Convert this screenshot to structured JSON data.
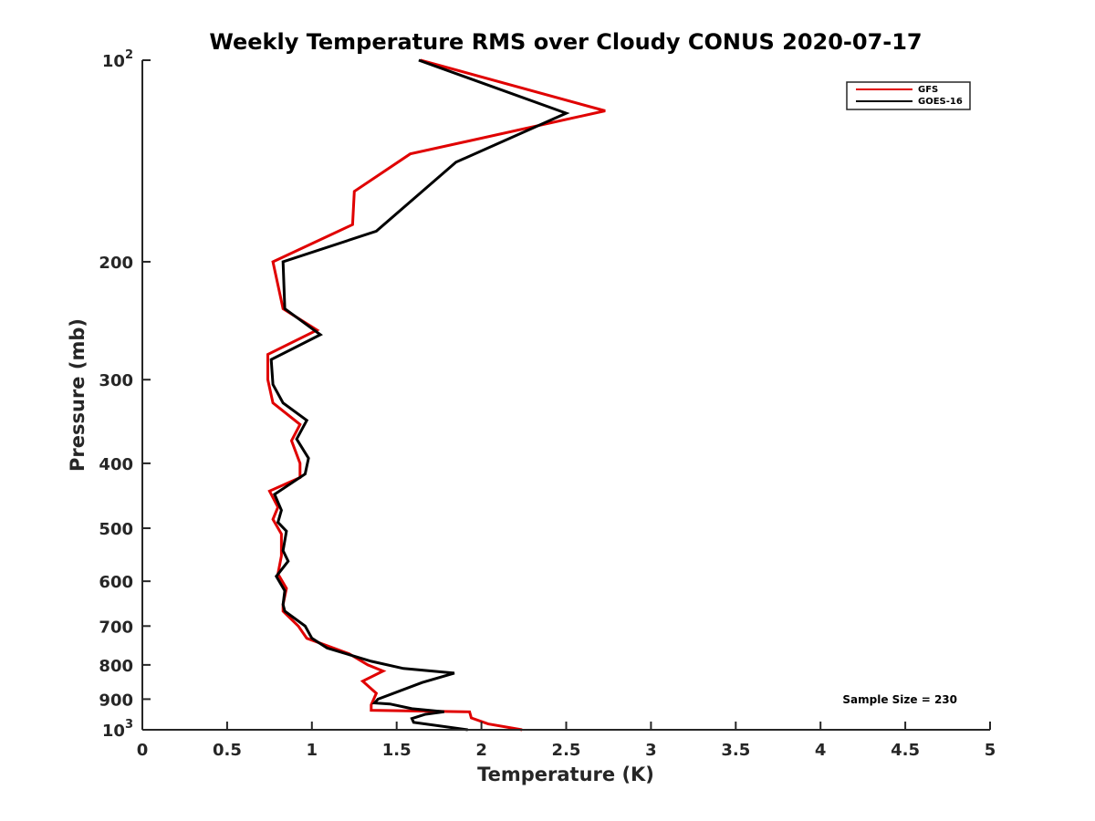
{
  "chart_data": {
    "type": "line",
    "title": "Weekly Temperature RMS over Cloudy CONUS 2020-07-17",
    "xlabel": "Temperature (K)",
    "ylabel": "Pressure (mb)",
    "xlim": [
      0,
      5
    ],
    "ylim": [
      100,
      1000
    ],
    "y_scale": "log",
    "y_reversed": true,
    "grid": false,
    "legend_position": "top-right",
    "x_ticks": [
      "0",
      "0.5",
      "1",
      "1.5",
      "2",
      "2.5",
      "3",
      "3.5",
      "4",
      "4.5",
      "5"
    ],
    "y_ticks": [
      {
        "value": 100,
        "base": "10",
        "exp": "2"
      },
      {
        "value": 200,
        "label": "200"
      },
      {
        "value": 300,
        "label": "300"
      },
      {
        "value": 400,
        "label": "400"
      },
      {
        "value": 500,
        "label": "500"
      },
      {
        "value": 600,
        "label": "600"
      },
      {
        "value": 700,
        "label": "700"
      },
      {
        "value": 800,
        "label": "800"
      },
      {
        "value": 900,
        "label": "900"
      },
      {
        "value": 1000,
        "base": "10",
        "exp": "3"
      }
    ],
    "annotation": "Sample Size = 230",
    "series": [
      {
        "name": "GFS",
        "color": "#e00000",
        "points": [
          [
            1.64,
            100
          ],
          [
            2.73,
            119
          ],
          [
            1.58,
            138
          ],
          [
            1.25,
            157
          ],
          [
            1.24,
            176
          ],
          [
            0.77,
            200
          ],
          [
            0.83,
            235
          ],
          [
            1.03,
            253
          ],
          [
            0.74,
            275
          ],
          [
            0.74,
            300
          ],
          [
            0.77,
            325
          ],
          [
            0.93,
            350
          ],
          [
            0.88,
            370
          ],
          [
            0.93,
            400
          ],
          [
            0.93,
            420
          ],
          [
            0.75,
            440
          ],
          [
            0.8,
            465
          ],
          [
            0.77,
            485
          ],
          [
            0.82,
            510
          ],
          [
            0.82,
            550
          ],
          [
            0.8,
            585
          ],
          [
            0.85,
            615
          ],
          [
            0.83,
            650
          ],
          [
            0.83,
            665
          ],
          [
            0.92,
            700
          ],
          [
            0.97,
            730
          ],
          [
            1.22,
            770
          ],
          [
            1.33,
            800
          ],
          [
            1.42,
            817
          ],
          [
            1.3,
            846
          ],
          [
            1.38,
            882
          ],
          [
            1.35,
            918
          ],
          [
            1.35,
            935
          ],
          [
            1.93,
            940
          ],
          [
            1.94,
            960
          ],
          [
            2.04,
            980
          ],
          [
            2.24,
            1000
          ]
        ]
      },
      {
        "name": "GOES-16",
        "color": "#000000",
        "points": [
          [
            1.63,
            100
          ],
          [
            2.5,
            120
          ],
          [
            1.85,
            142
          ],
          [
            1.38,
            180
          ],
          [
            0.83,
            200
          ],
          [
            0.84,
            235
          ],
          [
            1.05,
            257
          ],
          [
            0.76,
            280
          ],
          [
            0.77,
            305
          ],
          [
            0.83,
            325
          ],
          [
            0.97,
            345
          ],
          [
            0.91,
            368
          ],
          [
            0.98,
            393
          ],
          [
            0.96,
            415
          ],
          [
            0.78,
            445
          ],
          [
            0.82,
            470
          ],
          [
            0.8,
            490
          ],
          [
            0.85,
            505
          ],
          [
            0.83,
            540
          ],
          [
            0.86,
            560
          ],
          [
            0.79,
            590
          ],
          [
            0.84,
            620
          ],
          [
            0.83,
            650
          ],
          [
            0.84,
            665
          ],
          [
            0.96,
            700
          ],
          [
            1.0,
            730
          ],
          [
            1.09,
            755
          ],
          [
            1.35,
            790
          ],
          [
            1.54,
            810
          ],
          [
            1.84,
            823
          ],
          [
            1.65,
            850
          ],
          [
            1.39,
            900
          ],
          [
            1.37,
            912
          ],
          [
            1.46,
            915
          ],
          [
            1.59,
            930
          ],
          [
            1.78,
            940
          ],
          [
            1.67,
            948
          ],
          [
            1.59,
            962
          ],
          [
            1.6,
            975
          ],
          [
            1.92,
            1000
          ]
        ]
      }
    ]
  }
}
